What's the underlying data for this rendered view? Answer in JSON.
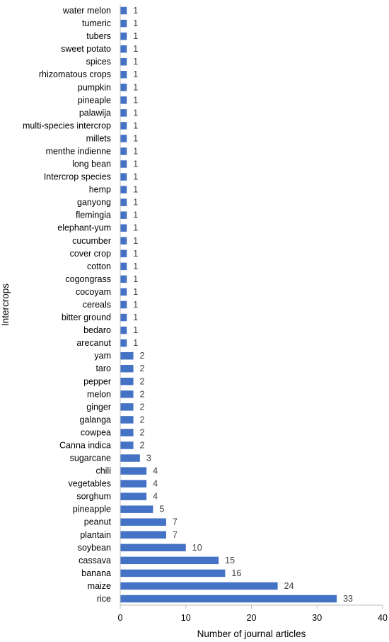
{
  "chart_data": {
    "type": "bar",
    "orientation": "horizontal",
    "xlabel": "Number of journal articles",
    "ylabel": "Intercrops",
    "xlim": [
      0,
      40
    ],
    "xticks": [
      0,
      10,
      20,
      30,
      40
    ],
    "grid": false,
    "bar_color": "#4472C4",
    "categories": [
      "water melon",
      "tumeric",
      "tubers",
      "sweet potato",
      "spices",
      "rhizomatous crops",
      "pumpkin",
      "pineaple",
      "palawija",
      "multi-species intercrop",
      "millets",
      "menthe indienne",
      "long bean",
      "Intercrop species",
      "hemp",
      "ganyong",
      "flemingia",
      "elephant-yum",
      "cucumber",
      "cover crop",
      "cotton",
      "cogongrass",
      "cocoyam",
      "cereals",
      "bitter ground",
      "bedaro",
      "arecanut",
      "yam",
      "taro",
      "pepper",
      "melon",
      "ginger",
      "galanga",
      "cowpea",
      "Canna indica",
      "sugarcane",
      "chili",
      "vegetables",
      "sorghum",
      "pineapple",
      "peanut",
      "plantain",
      "soybean",
      "cassava",
      "banana",
      "maize",
      "rice"
    ],
    "values": [
      1,
      1,
      1,
      1,
      1,
      1,
      1,
      1,
      1,
      1,
      1,
      1,
      1,
      1,
      1,
      1,
      1,
      1,
      1,
      1,
      1,
      1,
      1,
      1,
      1,
      1,
      1,
      2,
      2,
      2,
      2,
      2,
      2,
      2,
      2,
      3,
      4,
      4,
      4,
      5,
      7,
      7,
      10,
      15,
      16,
      24,
      33
    ]
  }
}
